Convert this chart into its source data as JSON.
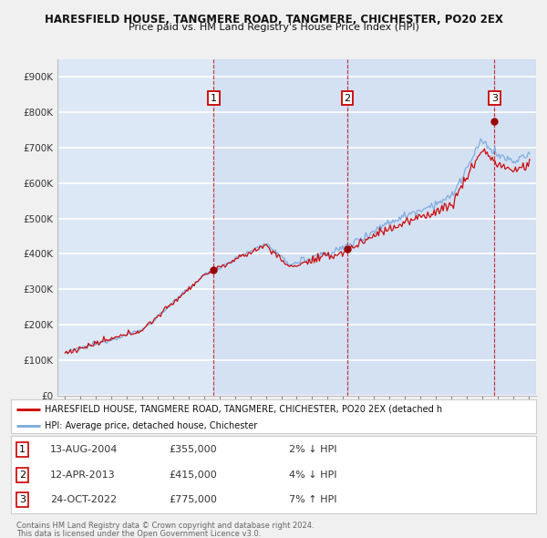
{
  "title1": "HARESFIELD HOUSE, TANGMERE ROAD, TANGMERE, CHICHESTER, PO20 2EX",
  "title2": "Price paid vs. HM Land Registry's House Price Index (HPI)",
  "legend_line1": "HARESFIELD HOUSE, TANGMERE ROAD, TANGMERE, CHICHESTER, PO20 2EX (detached h",
  "legend_line2": "HPI: Average price, detached house, Chichester",
  "sales": [
    {
      "num": 1,
      "date": "13-AUG-2004",
      "price": 355000,
      "pct": "2%",
      "dir": "↓",
      "date_val": 2004.62
    },
    {
      "num": 2,
      "date": "12-APR-2013",
      "price": 415000,
      "pct": "4%",
      "dir": "↓",
      "date_val": 2013.28
    },
    {
      "num": 3,
      "date": "24-OCT-2022",
      "price": 775000,
      "pct": "7%",
      "dir": "↑",
      "date_val": 2022.81
    }
  ],
  "footnote1": "Contains HM Land Registry data © Crown copyright and database right 2024.",
  "footnote2": "This data is licensed under the Open Government Licence v3.0.",
  "ylim": [
    0,
    950000
  ],
  "yticks": [
    0,
    100000,
    200000,
    300000,
    400000,
    500000,
    600000,
    700000,
    800000,
    900000
  ],
  "xmin": 1994.5,
  "xmax": 2025.5,
  "background_color": "#dce8f5",
  "grid_color": "#ffffff",
  "line_color_red": "#cc0000",
  "line_color_blue": "#7aaadd",
  "sale_marker_color": "#990000",
  "box_color": "#cc0000",
  "dashed_color": "#cc0000",
  "fig_bg": "#f0f0f0"
}
